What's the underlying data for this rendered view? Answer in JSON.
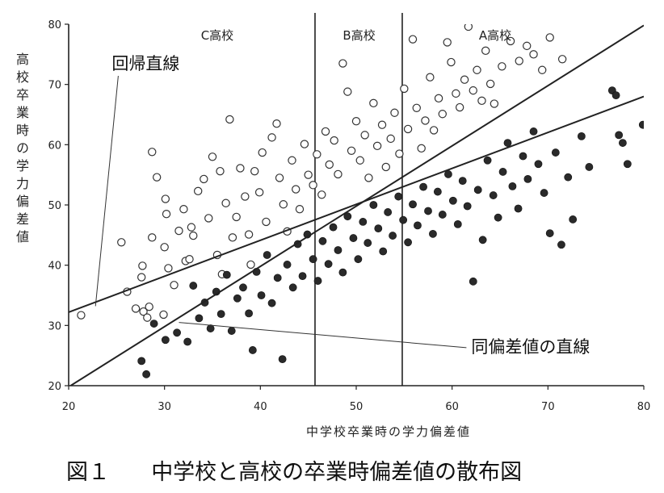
{
  "chart_data": {
    "type": "scatter",
    "title": "",
    "xlabel": "中学校卒業時の学力偏差値",
    "ylabel": "高校卒業時の学力偏差値",
    "xlim": [
      20,
      80
    ],
    "ylim": [
      20,
      80
    ],
    "xticks": [
      20,
      30,
      40,
      50,
      60,
      70,
      80
    ],
    "yticks": [
      20,
      30,
      40,
      50,
      60,
      70,
      80
    ],
    "school_boundaries": [
      45.7,
      54.8
    ],
    "school_labels": [
      {
        "label": "C高校",
        "x": 35.5,
        "y": 78.5
      },
      {
        "label": "B高校",
        "x": 50.3,
        "y": 78.5
      },
      {
        "label": "A高校",
        "x": 64.5,
        "y": 78.5
      }
    ],
    "lines": [
      {
        "name": "回帰直線",
        "x": [
          20,
          80
        ],
        "y": [
          32.2,
          68.0
        ]
      },
      {
        "name": "同偏差値の直線",
        "x": [
          20,
          80
        ],
        "y": [
          19.8,
          79.8
        ]
      }
    ],
    "annotations": [
      {
        "text": "回帰直線",
        "x": 24.5,
        "y": 72.5,
        "point_x": 22.8,
        "point_y": 33.2
      },
      {
        "text": "同偏差値の直線",
        "x": 62,
        "y": 25.5,
        "point_x": 31.5,
        "point_y": 30.5
      }
    ],
    "series": [
      {
        "marker": "open-circle",
        "points": [
          [
            21.3,
            31.7
          ],
          [
            25.5,
            43.8
          ],
          [
            26.1,
            35.6
          ],
          [
            27.0,
            32.8
          ],
          [
            27.6,
            38.0
          ],
          [
            27.7,
            39.9
          ],
          [
            27.8,
            32.3
          ],
          [
            28.2,
            31.3
          ],
          [
            28.4,
            33.1
          ],
          [
            28.7,
            44.6
          ],
          [
            28.7,
            58.8
          ],
          [
            29.2,
            54.6
          ],
          [
            29.9,
            31.8
          ],
          [
            30.0,
            43.0
          ],
          [
            30.1,
            51.0
          ],
          [
            30.2,
            48.5
          ],
          [
            30.4,
            39.5
          ],
          [
            31.0,
            36.7
          ],
          [
            31.5,
            45.7
          ],
          [
            32.0,
            49.3
          ],
          [
            32.2,
            40.7
          ],
          [
            32.6,
            41.0
          ],
          [
            32.8,
            46.3
          ],
          [
            33.0,
            44.9
          ],
          [
            33.5,
            52.3
          ],
          [
            34.1,
            54.3
          ],
          [
            34.6,
            47.8
          ],
          [
            35.0,
            58.0
          ],
          [
            35.5,
            41.7
          ],
          [
            35.8,
            55.6
          ],
          [
            36.0,
            38.5
          ],
          [
            36.4,
            50.3
          ],
          [
            36.8,
            64.2
          ],
          [
            37.1,
            44.6
          ],
          [
            37.5,
            48.0
          ],
          [
            37.9,
            56.1
          ],
          [
            38.4,
            51.4
          ],
          [
            38.8,
            45.1
          ],
          [
            39.0,
            40.1
          ],
          [
            39.4,
            55.6
          ],
          [
            39.9,
            52.1
          ],
          [
            40.2,
            58.7
          ],
          [
            40.6,
            47.2
          ],
          [
            41.2,
            61.2
          ],
          [
            41.7,
            63.5
          ],
          [
            42.0,
            54.5
          ],
          [
            42.4,
            50.1
          ],
          [
            42.8,
            45.6
          ],
          [
            43.3,
            57.4
          ],
          [
            43.7,
            52.6
          ],
          [
            44.1,
            49.3
          ],
          [
            44.6,
            60.1
          ],
          [
            45.0,
            55.0
          ],
          [
            45.5,
            53.3
          ],
          [
            45.9,
            58.4
          ],
          [
            46.4,
            51.7
          ],
          [
            46.8,
            62.2
          ],
          [
            47.2,
            56.7
          ],
          [
            47.7,
            60.7
          ],
          [
            48.1,
            55.1
          ],
          [
            48.6,
            73.5
          ],
          [
            49.1,
            68.8
          ],
          [
            49.5,
            59.0
          ],
          [
            50.0,
            63.9
          ],
          [
            50.4,
            57.4
          ],
          [
            50.9,
            61.6
          ],
          [
            51.3,
            54.5
          ],
          [
            51.8,
            66.9
          ],
          [
            52.2,
            59.8
          ],
          [
            52.7,
            63.3
          ],
          [
            53.1,
            56.3
          ],
          [
            53.6,
            61.0
          ],
          [
            54.0,
            65.3
          ],
          [
            54.5,
            58.5
          ],
          [
            55.0,
            69.3
          ],
          [
            55.4,
            62.6
          ],
          [
            55.9,
            77.5
          ],
          [
            56.3,
            66.1
          ],
          [
            56.8,
            59.4
          ],
          [
            57.2,
            64.0
          ],
          [
            57.7,
            71.2
          ],
          [
            58.1,
            62.4
          ],
          [
            58.6,
            67.7
          ],
          [
            59.0,
            65.1
          ],
          [
            59.5,
            77.0
          ],
          [
            59.9,
            73.7
          ],
          [
            60.4,
            68.5
          ],
          [
            60.8,
            66.2
          ],
          [
            61.3,
            70.8
          ],
          [
            61.7,
            79.6
          ],
          [
            62.2,
            69.0
          ],
          [
            62.6,
            72.4
          ],
          [
            63.1,
            67.3
          ],
          [
            63.5,
            75.6
          ],
          [
            64.0,
            70.1
          ],
          [
            64.4,
            66.8
          ],
          [
            65.2,
            73.0
          ],
          [
            66.1,
            77.2
          ],
          [
            67.0,
            73.9
          ],
          [
            67.8,
            76.4
          ],
          [
            68.5,
            75.0
          ],
          [
            69.4,
            72.4
          ],
          [
            70.2,
            77.8
          ],
          [
            71.5,
            74.2
          ]
        ]
      },
      {
        "marker": "filled-circle",
        "points": [
          [
            27.6,
            24.1
          ],
          [
            28.1,
            21.9
          ],
          [
            28.9,
            30.3
          ],
          [
            30.1,
            27.6
          ],
          [
            31.3,
            28.8
          ],
          [
            32.4,
            27.3
          ],
          [
            33.0,
            36.6
          ],
          [
            33.6,
            31.2
          ],
          [
            34.2,
            33.8
          ],
          [
            34.8,
            29.5
          ],
          [
            35.4,
            35.6
          ],
          [
            35.9,
            31.9
          ],
          [
            36.5,
            38.4
          ],
          [
            37.0,
            29.1
          ],
          [
            37.6,
            34.5
          ],
          [
            38.2,
            36.3
          ],
          [
            38.8,
            32.0
          ],
          [
            39.2,
            25.9
          ],
          [
            39.6,
            38.9
          ],
          [
            40.1,
            35.0
          ],
          [
            40.7,
            41.7
          ],
          [
            41.2,
            33.7
          ],
          [
            41.8,
            37.9
          ],
          [
            42.3,
            24.4
          ],
          [
            42.8,
            40.1
          ],
          [
            43.4,
            36.3
          ],
          [
            43.9,
            43.5
          ],
          [
            44.4,
            38.2
          ],
          [
            44.9,
            45.1
          ],
          [
            45.5,
            41.0
          ],
          [
            46.0,
            37.4
          ],
          [
            46.5,
            44.0
          ],
          [
            47.1,
            40.2
          ],
          [
            47.6,
            46.3
          ],
          [
            48.1,
            42.5
          ],
          [
            48.6,
            38.8
          ],
          [
            49.1,
            48.1
          ],
          [
            49.7,
            44.5
          ],
          [
            50.2,
            41.0
          ],
          [
            50.7,
            47.2
          ],
          [
            51.2,
            43.7
          ],
          [
            51.8,
            50.0
          ],
          [
            52.3,
            46.1
          ],
          [
            52.8,
            42.3
          ],
          [
            53.3,
            48.8
          ],
          [
            53.8,
            44.9
          ],
          [
            54.4,
            51.4
          ],
          [
            54.9,
            47.5
          ],
          [
            55.4,
            43.8
          ],
          [
            55.9,
            50.1
          ],
          [
            56.4,
            46.6
          ],
          [
            57.0,
            53.0
          ],
          [
            57.5,
            49.0
          ],
          [
            58.0,
            45.2
          ],
          [
            58.5,
            52.2
          ],
          [
            59.0,
            48.4
          ],
          [
            59.6,
            55.1
          ],
          [
            60.1,
            50.7
          ],
          [
            60.6,
            46.8
          ],
          [
            61.1,
            54.0
          ],
          [
            61.6,
            49.8
          ],
          [
            62.2,
            37.3
          ],
          [
            62.7,
            52.5
          ],
          [
            63.2,
            44.2
          ],
          [
            63.7,
            57.4
          ],
          [
            64.3,
            51.6
          ],
          [
            64.8,
            47.9
          ],
          [
            65.3,
            55.5
          ],
          [
            65.8,
            60.3
          ],
          [
            66.3,
            53.1
          ],
          [
            66.9,
            49.4
          ],
          [
            67.4,
            58.1
          ],
          [
            67.9,
            54.3
          ],
          [
            68.5,
            62.2
          ],
          [
            69.0,
            56.8
          ],
          [
            69.6,
            52.0
          ],
          [
            70.2,
            45.3
          ],
          [
            70.8,
            58.7
          ],
          [
            71.4,
            43.4
          ],
          [
            72.1,
            54.6
          ],
          [
            72.6,
            47.6
          ],
          [
            73.5,
            61.4
          ],
          [
            74.3,
            56.3
          ],
          [
            76.7,
            69.0
          ],
          [
            77.1,
            68.2
          ],
          [
            77.4,
            61.6
          ],
          [
            77.8,
            60.3
          ],
          [
            78.3,
            56.8
          ],
          [
            79.9,
            63.3
          ]
        ]
      }
    ]
  },
  "caption": {
    "fig": "図１",
    "text": "中学校と高校の卒業時偏差値の散布図"
  }
}
